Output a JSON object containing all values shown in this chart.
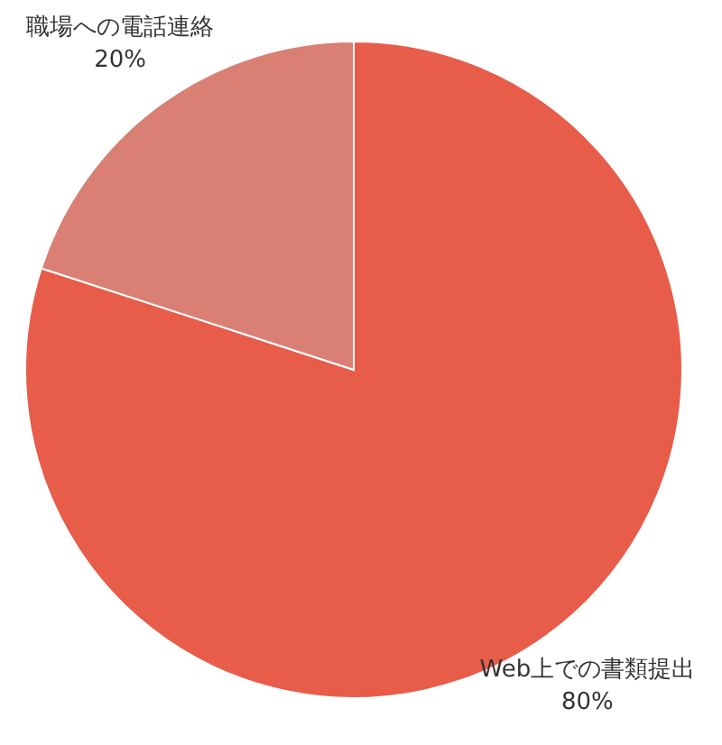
{
  "chart_data": {
    "type": "pie",
    "categories": [
      "Web上での書類提出",
      "職場への電話連絡"
    ],
    "values": [
      80,
      20
    ],
    "colors": [
      "#e85c4a",
      "#d97f74"
    ],
    "value_labels": [
      "80%",
      "20%"
    ]
  }
}
